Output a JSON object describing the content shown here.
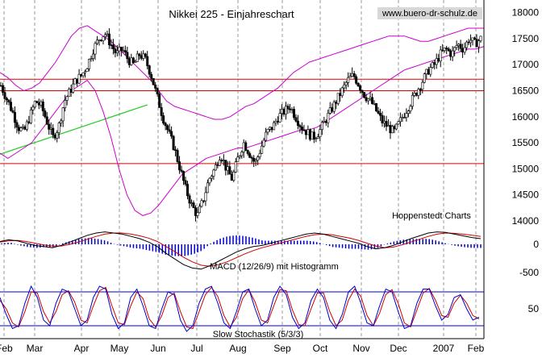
{
  "chart_data": {
    "title": "Nikkei 225 - Einjahreschart",
    "watermark": "www.buero-dr-schulz.de",
    "source_label": "Hoppenstedt Charts",
    "macd_label": "MACD (12/26/9) mit Histogramm",
    "stoch_label": "Slow Stochastik (5/3/3)",
    "months": [
      "Feb",
      "Mar",
      "Apr",
      "May",
      "Jun",
      "Jul",
      "Aug",
      "Sep",
      "Oct",
      "Nov",
      "Dec",
      "2007",
      "Feb"
    ],
    "price_panel": {
      "type": "candlestick",
      "y_ticks": [
        14000,
        14500,
        15000,
        15500,
        16000,
        16500,
        17000,
        17500,
        18000
      ],
      "ylim": [
        13750,
        18150
      ],
      "horizontal_lines": [
        16720,
        16500,
        15100
      ],
      "trendline": {
        "from": [
          0,
          15280
        ],
        "to": [
          122,
          16230
        ]
      },
      "closes": [
        16600,
        16350,
        16100,
        15800,
        15700,
        16000,
        16300,
        16200,
        15900,
        15600,
        15800,
        16300,
        16500,
        16700,
        16800,
        17000,
        17300,
        17500,
        17600,
        17400,
        17200,
        17300,
        17100,
        17000,
        17200,
        17100,
        16800,
        16400,
        16000,
        15700,
        15400,
        15000,
        14600,
        14300,
        14100,
        14400,
        14800,
        15000,
        15300,
        15000,
        14800,
        15200,
        15500,
        15300,
        15100,
        15400,
        15700,
        15800,
        16000,
        16100,
        16200,
        16000,
        15800,
        15700,
        15600,
        15700,
        15900,
        16100,
        16300,
        16500,
        16700,
        16800,
        16600,
        16400,
        16300,
        16100,
        15900,
        15800,
        15700,
        15900,
        16100,
        16300,
        16500,
        16700,
        16900,
        17000,
        17200,
        17300,
        17200,
        17400,
        17300,
        17500,
        17400,
        17500
      ],
      "upper_band": [
        16850,
        16750,
        16600,
        16500,
        16550,
        16650,
        16850,
        17050,
        17300,
        17550,
        17700,
        17750,
        17650,
        17550,
        17450,
        17300,
        17150,
        17000,
        16850,
        16700,
        16500,
        16300,
        16200,
        16150,
        16100,
        16050,
        16000,
        15950,
        15950,
        16000,
        16100,
        16200,
        16250,
        16350,
        16450,
        16550,
        16700,
        16850,
        16950,
        17050,
        17100,
        17150,
        17200,
        17250,
        17300,
        17350,
        17400,
        17450,
        17500,
        17550,
        17550,
        17550,
        17500,
        17450,
        17450,
        17500,
        17550,
        17600,
        17650,
        17700,
        17700,
        17700
      ],
      "lower_band": [
        15300,
        15200,
        15300,
        15400,
        15500,
        15700,
        15900,
        16100,
        16300,
        16500,
        16600,
        16700,
        16500,
        16100,
        15600,
        15000,
        14500,
        14200,
        14100,
        14150,
        14300,
        14500,
        14700,
        14900,
        15000,
        15100,
        15200,
        15250,
        15300,
        15350,
        15400,
        15400,
        15450,
        15500,
        15550,
        15600,
        15650,
        15700,
        15750,
        15750,
        15800,
        15900,
        16000,
        16100,
        16200,
        16300,
        16400,
        16500,
        16600,
        16700,
        16800,
        16900,
        16950,
        17000,
        17050,
        17100,
        17150,
        17200,
        17250,
        17300,
        17300,
        17350
      ]
    },
    "macd_panel": {
      "type": "line+histogram",
      "y_ticks": [
        0,
        -500
      ],
      "macd": [
        50,
        80,
        60,
        20,
        -20,
        -40,
        -60,
        -20,
        40,
        100,
        160,
        200,
        220,
        200,
        180,
        140,
        100,
        40,
        -40,
        -160,
        -260,
        -360,
        -420,
        -440,
        -380,
        -300,
        -220,
        -140,
        -80,
        -40,
        -20,
        20,
        60,
        100,
        140,
        180,
        200,
        180,
        140,
        100,
        60,
        20,
        -40,
        -80,
        -60,
        -20,
        40,
        100,
        150,
        200,
        220,
        210,
        180,
        150,
        120,
        100
      ],
      "signal": [
        40,
        60,
        70,
        50,
        20,
        -10,
        -30,
        -30,
        0,
        40,
        90,
        140,
        180,
        200,
        200,
        180,
        150,
        110,
        50,
        -40,
        -130,
        -230,
        -310,
        -370,
        -390,
        -360,
        -310,
        -240,
        -170,
        -110,
        -60,
        -20,
        20,
        60,
        100,
        140,
        170,
        180,
        170,
        140,
        110,
        70,
        20,
        -30,
        -60,
        -50,
        -10,
        40,
        90,
        140,
        180,
        200,
        195,
        180,
        160,
        140
      ],
      "histogram": [
        10,
        20,
        -10,
        -30,
        -40,
        -30,
        -30,
        10,
        40,
        60,
        70,
        60,
        40,
        0,
        -20,
        -40,
        -50,
        -70,
        -90,
        -120,
        -130,
        -130,
        -110,
        -70,
        10,
        60,
        90,
        100,
        90,
        70,
        40,
        40,
        40,
        40,
        40,
        40,
        30,
        0,
        -30,
        -40,
        -50,
        -50,
        -60,
        -50,
        0,
        30,
        50,
        60,
        60,
        60,
        40,
        10,
        -15,
        -30,
        -40,
        -40
      ]
    },
    "stoch_panel": {
      "type": "line",
      "y_ticks": [
        50
      ],
      "ylim": [
        0,
        100
      ],
      "levels": [
        80,
        20
      ],
      "k": [
        70,
        40,
        15,
        20,
        60,
        90,
        70,
        30,
        20,
        60,
        85,
        80,
        50,
        20,
        30,
        70,
        90,
        85,
        40,
        15,
        25,
        70,
        85,
        55,
        20,
        15,
        50,
        80,
        75,
        30,
        10,
        20,
        60,
        85,
        90,
        60,
        25,
        15,
        45,
        80,
        85,
        50,
        20,
        30,
        70,
        90,
        75,
        35,
        15,
        25,
        65,
        85,
        70,
        30,
        15,
        40,
        80,
        90,
        60,
        25,
        20,
        55,
        85,
        80,
        45,
        15,
        20,
        60,
        85,
        85,
        55,
        30,
        40,
        70,
        75,
        50,
        30,
        35
      ],
      "d": [
        65,
        50,
        25,
        18,
        45,
        80,
        78,
        45,
        25,
        45,
        75,
        82,
        62,
        30,
        25,
        55,
        82,
        88,
        55,
        25,
        22,
        55,
        80,
        68,
        32,
        18,
        38,
        70,
        78,
        45,
        18,
        15,
        45,
        75,
        88,
        72,
        38,
        18,
        35,
        68,
        84,
        62,
        30,
        25,
        55,
        84,
        82,
        48,
        22,
        20,
        50,
        78,
        78,
        45,
        20,
        30,
        65,
        85,
        72,
        38,
        20,
        42,
        75,
        84,
        60,
        25,
        18,
        48,
        78,
        86,
        65,
        38,
        35,
        60,
        74,
        60,
        38,
        32
      ]
    }
  }
}
